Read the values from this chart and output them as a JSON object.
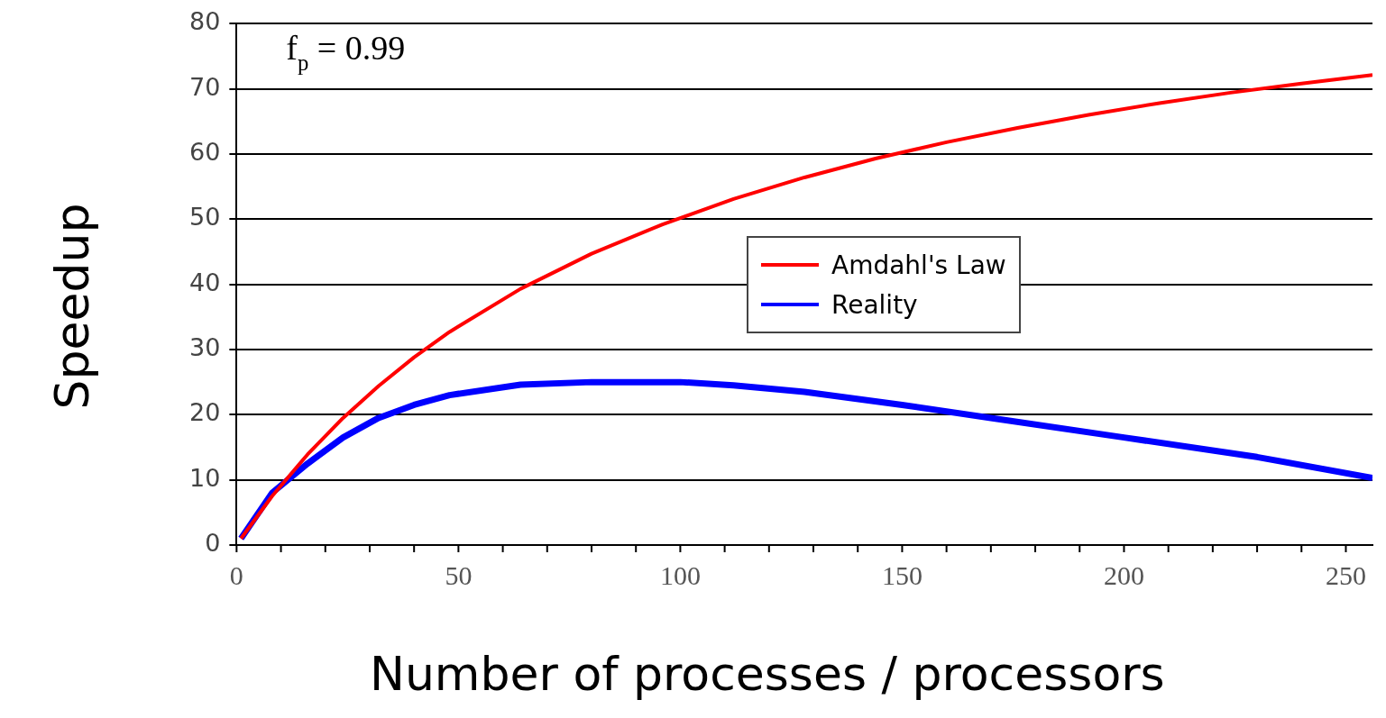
{
  "chart_data": {
    "type": "line",
    "xlabel": "Number of processes / processors",
    "ylabel": "Speedup",
    "annotations": [
      "f$_{p}$ = 0.99"
    ],
    "series": [
      {
        "name": "Amdahl's Law",
        "color": "#ff0000",
        "x": [
          1,
          8,
          16,
          24,
          32,
          40,
          48,
          64,
          80,
          96,
          112,
          128,
          144,
          160,
          176,
          192,
          208,
          224,
          240,
          256
        ],
        "values": [
          1,
          7.5,
          13.9,
          19.5,
          24.4,
          28.8,
          32.7,
          39.3,
          44.7,
          49.2,
          53.1,
          56.4,
          59.3,
          61.8,
          64.0,
          66.0,
          67.8,
          69.4,
          70.8,
          72.1
        ]
      },
      {
        "name": "Reality",
        "color": "#0000ff",
        "x": [
          1,
          8,
          16,
          24,
          32,
          40,
          48,
          64,
          80,
          100,
          112,
          128,
          150,
          170,
          200,
          230,
          256
        ],
        "values": [
          1,
          8,
          12.5,
          16.5,
          19.5,
          21.5,
          23,
          24.6,
          25,
          25,
          24.5,
          23.5,
          21.5,
          19.5,
          16.5,
          13.5,
          10.3
        ]
      }
    ],
    "xlim": [
      0,
      256
    ],
    "ylim": [
      0,
      80
    ],
    "xticks": [
      0,
      {
        "value": 10,
        "label": null
      },
      {
        "value": 20,
        "label": null
      },
      {
        "value": 30,
        "label": null
      },
      {
        "value": 40,
        "label": null
      },
      50,
      {
        "value": 60,
        "label": null
      },
      {
        "value": 70,
        "label": null
      },
      {
        "value": 80,
        "label": null
      },
      {
        "value": 90,
        "label": null
      },
      100,
      {
        "value": 110,
        "label": null
      },
      {
        "value": 120,
        "label": null
      },
      {
        "value": 130,
        "label": null
      },
      {
        "value": 140,
        "label": null
      },
      150,
      {
        "value": 160,
        "label": null
      },
      {
        "value": 170,
        "label": null
      },
      {
        "value": 180,
        "label": null
      },
      {
        "value": 190,
        "label": null
      },
      200,
      {
        "value": 210,
        "label": null
      },
      {
        "value": 220,
        "label": null
      },
      {
        "value": 230,
        "label": null
      },
      {
        "value": 240,
        "label": null
      },
      250
    ],
    "yticks": [
      0,
      10,
      20,
      30,
      40,
      50,
      60,
      70,
      80
    ],
    "grid": "y",
    "legend": "right",
    "marker": "none",
    "line_style": "solid"
  }
}
